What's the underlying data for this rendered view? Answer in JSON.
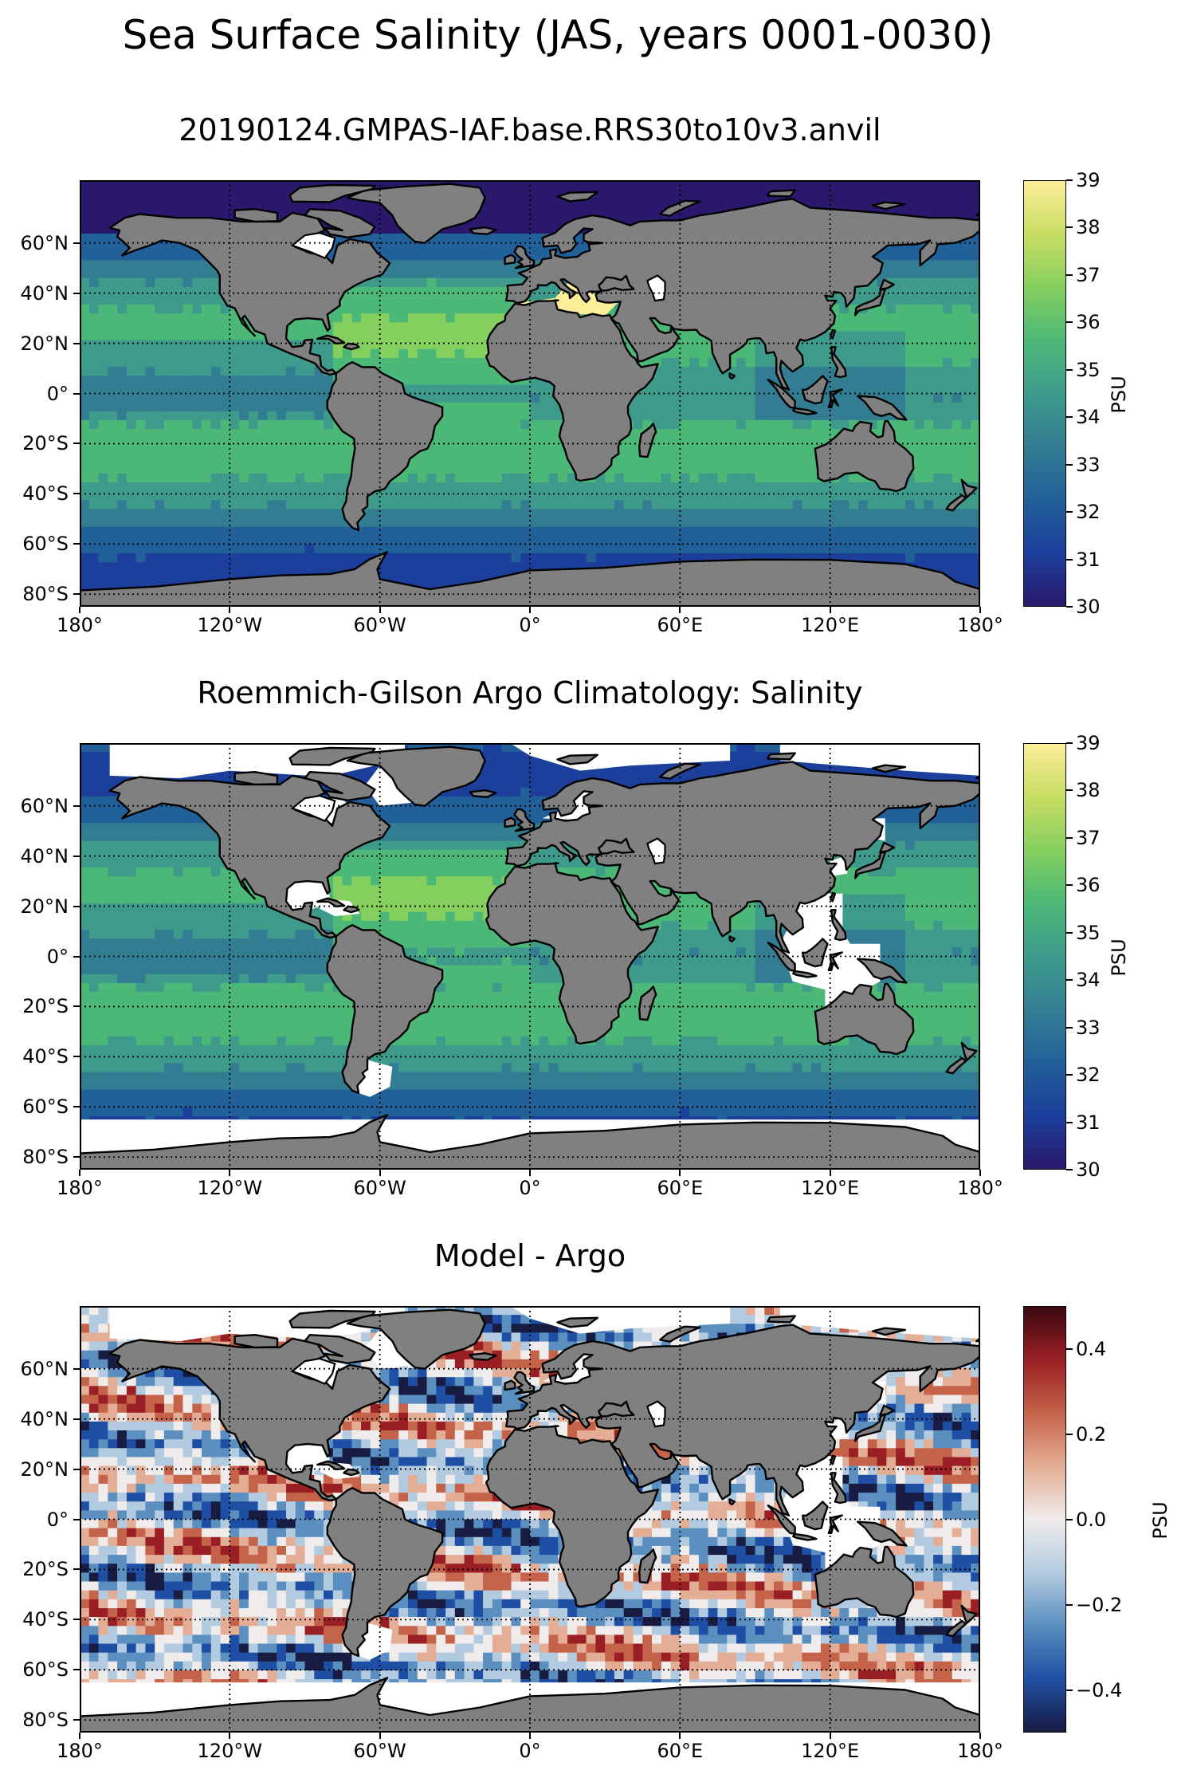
{
  "suptitle": "Sea Surface Salinity (JAS, years 0001-0030)",
  "colors": {
    "land": "#808080",
    "no_data": "#ffffff",
    "coastline": "#000000",
    "haline": [
      "#2a186c",
      "#1b3f9b",
      "#22609a",
      "#337d93",
      "#3e9b8c",
      "#4cb877",
      "#85cf5e",
      "#c8dd63",
      "#fdee99"
    ],
    "balance": [
      "#181c43",
      "#1e4fa4",
      "#5a8fc0",
      "#b3cbe0",
      "#f1ecec",
      "#e4ad95",
      "#c5634a",
      "#9a1f24",
      "#3c0912"
    ]
  },
  "panels": [
    {
      "id": "model",
      "title": "20190124.GMPAS-IAF.base.RRS30to10v3.anvil",
      "colorbar": {
        "label": "PSU",
        "min": 30,
        "max": 39,
        "ticks": [
          "39",
          "38",
          "37",
          "36",
          "35",
          "34",
          "33",
          "32",
          "31",
          "30"
        ],
        "colormap": "haline"
      }
    },
    {
      "id": "obs",
      "title": "Roemmich-Gilson Argo Climatology: Salinity",
      "colorbar": {
        "label": "PSU",
        "min": 30,
        "max": 39,
        "ticks": [
          "39",
          "38",
          "37",
          "36",
          "35",
          "34",
          "33",
          "32",
          "31",
          "30"
        ],
        "colormap": "haline"
      }
    },
    {
      "id": "bias",
      "title": "Model - Argo",
      "colorbar": {
        "label": "PSU",
        "min": -0.5,
        "max": 0.5,
        "ticks": [
          "0.4",
          "0.2",
          "0.0",
          "−0.2",
          "−0.4"
        ],
        "colormap": "balance"
      }
    }
  ],
  "lat_ticks": [
    "60°N",
    "40°N",
    "20°N",
    "0°",
    "20°S",
    "40°S",
    "60°S",
    "80°S"
  ],
  "lon_ticks": [
    "180°",
    "120°W",
    "60°W",
    "0°",
    "60°E",
    "120°E",
    "180°"
  ]
}
